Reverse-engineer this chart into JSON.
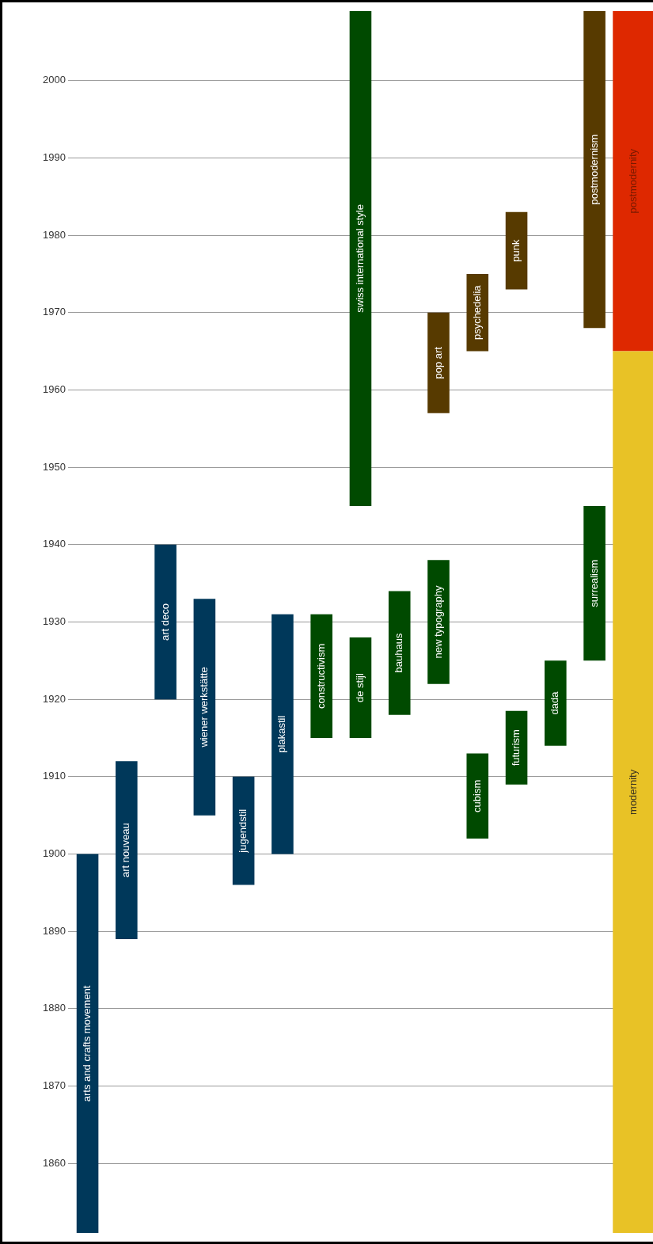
{
  "chart_data": {
    "type": "bar",
    "categories": [
      null,
      null,
      null,
      null,
      null,
      null,
      null,
      null,
      null,
      null,
      null,
      null,
      null,
      null,
      null
    ],
    "series": [
      {
        "base": [
          1851,
          1889,
          1920,
          1905,
          1896,
          1900,
          1915,
          1915,
          1918,
          1922,
          1902,
          1909,
          1914,
          1925,
          null
        ],
        "values": [
          49,
          23,
          20,
          28,
          14,
          31,
          16,
          13,
          16,
          16,
          11,
          9.5,
          11,
          20,
          null
        ],
        "colors": [
          "#00385a",
          "#00385a",
          "#00385a",
          "#00385a",
          "#00385a",
          "#00385a",
          "#004a00",
          "#004a00",
          "#004a00",
          "#004a00",
          "#004a00",
          "#004a00",
          "#004a00",
          "#004a00",
          "#004a00"
        ],
        "value_labels": [
          "arts and crafts movement",
          "art nouveau",
          "art deco",
          "wiener werkstätte",
          "jugendstil",
          "plakastil",
          "constructivism",
          "de stijl",
          "bauhaus",
          "new typography",
          "cubism",
          "futurism",
          "dada",
          "surrealism",
          null
        ]
      },
      {
        "base": [
          null,
          null,
          null,
          null,
          null,
          null,
          null,
          1945,
          null,
          1957,
          1965,
          1973,
          null,
          1968,
          null
        ],
        "values": [
          null,
          null,
          null,
          null,
          null,
          null,
          null,
          64,
          null,
          13,
          10,
          10,
          null,
          41,
          null
        ],
        "colors": [
          "#573a00",
          "#573a00",
          "#573a00",
          "#573a00",
          "#573a00",
          "#573a00",
          "#573a00",
          "#004a00",
          "#573a00",
          "#573a00",
          "#573a00",
          "#573a00",
          "#573a00",
          "#573a00",
          "#573a00"
        ],
        "value_labels": [
          null,
          null,
          null,
          null,
          null,
          null,
          null,
          "swiss international style",
          null,
          "pop art",
          "psychedelia",
          "punk",
          null,
          "postmodernism",
          null
        ]
      },
      {
        "base": [
          null,
          null,
          null,
          null,
          null,
          null,
          null,
          null,
          null,
          null,
          null,
          null,
          null,
          null,
          1851
        ],
        "values": [
          null,
          null,
          null,
          null,
          null,
          null,
          null,
          null,
          null,
          null,
          null,
          null,
          null,
          null,
          114
        ],
        "color": "#e8c226",
        "value_labels": [
          null,
          null,
          null,
          null,
          null,
          null,
          null,
          null,
          null,
          null,
          null,
          null,
          null,
          null,
          "modernity"
        ]
      },
      {
        "base": [
          null,
          null,
          null,
          null,
          null,
          null,
          null,
          null,
          null,
          null,
          null,
          null,
          null,
          null,
          1965
        ],
        "values": [
          null,
          null,
          null,
          null,
          null,
          null,
          null,
          null,
          null,
          null,
          null,
          null,
          null,
          null,
          44
        ],
        "color": "#de2800",
        "value_labels": [
          null,
          null,
          null,
          null,
          null,
          null,
          null,
          null,
          null,
          null,
          null,
          null,
          null,
          null,
          "postmodernity"
        ]
      }
    ],
    "ylim": [
      1851,
      2009
    ],
    "yticks": [
      1860,
      1870,
      1880,
      1890,
      1900,
      1910,
      1920,
      1930,
      1940,
      1950,
      1960,
      1970,
      1980,
      1990,
      2000
    ],
    "grid": "y",
    "legend": false
  }
}
